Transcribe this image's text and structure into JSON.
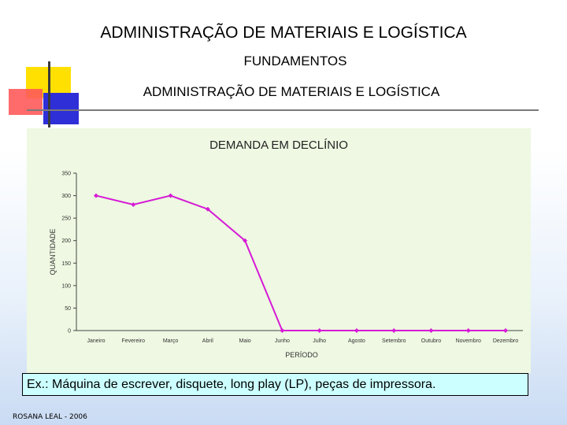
{
  "header": {
    "title": "ADMINISTRAÇÃO DE MATERIAIS E LOGÍSTICA",
    "subtitle": "FUNDAMENTOS",
    "section_title": "ADMINISTRAÇÃO DE MATERIAIS E LOGÍSTICA"
  },
  "chart_data": {
    "type": "line",
    "title": "DEMANDA EM DECLÍNIO",
    "xlabel": "PERÍODO",
    "ylabel": "QUANTIDADE",
    "categories": [
      "Janeiro",
      "Fevereiro",
      "Março",
      "Abril",
      "Maio",
      "Junho",
      "Julho",
      "Agosto",
      "Setembro",
      "Outubro",
      "Novembro",
      "Dezembro"
    ],
    "series": [
      {
        "values": [
          300,
          280,
          300,
          270,
          200,
          0,
          0,
          0,
          0,
          0,
          0,
          0
        ]
      }
    ],
    "ylim": [
      0,
      350
    ],
    "yticks": [
      0,
      50,
      100,
      150,
      200,
      250,
      300,
      350
    ],
    "grid": false,
    "legend": "none",
    "line_color": "#d61ad6"
  },
  "note": "Ex.: Máquina de escrever, disquete, long play (LP), peças de impressora.",
  "footer": "ROSANA LEAL - 2006"
}
